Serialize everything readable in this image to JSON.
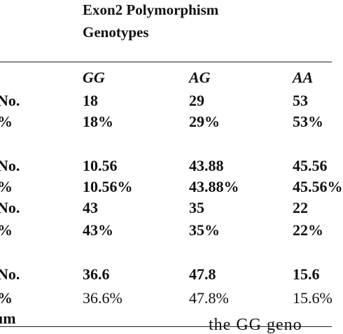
{
  "header": {
    "title": [
      "Exon2 Polymorphism",
      "Genotypes"
    ]
  },
  "table": {
    "columns": [
      "GG",
      "AG",
      "AA"
    ],
    "rows": [
      [
        "No.",
        "18",
        "29",
        "53"
      ],
      [
        "%",
        "18%",
        "29%",
        "53%"
      ],
      [
        "No.",
        "10.56",
        "43.88",
        "45.56"
      ],
      [
        "%",
        "10.56%",
        "43.88%",
        "45.56%"
      ],
      [
        "No.",
        "43",
        "35",
        "22"
      ],
      [
        "%",
        "43%",
        "35%",
        "22%"
      ],
      [
        "No.",
        "36.6",
        "47.8",
        "15.6"
      ],
      [
        "%",
        "36.6%",
        "47.8%",
        "15.6%"
      ]
    ]
  },
  "footer": {
    "left": "um",
    "right": "the GG geno"
  }
}
